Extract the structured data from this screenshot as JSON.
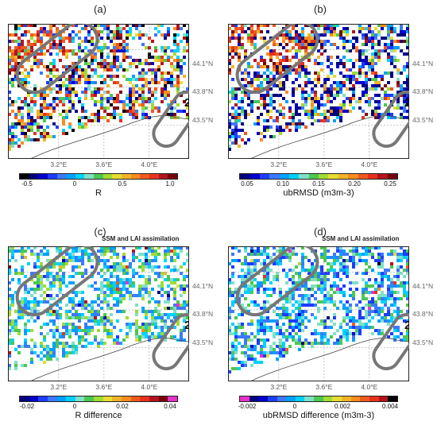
{
  "panels": [
    {
      "label": "(a)",
      "subtitle": "",
      "cbar_label": "R",
      "ticks": [
        "-0.5",
        "0",
        "0.5",
        "1.0"
      ],
      "lats": [
        "44.1°N",
        "43.8°N",
        "43.5°N"
      ],
      "lons": [
        "3.2°E",
        "3.6°E",
        "4.0°E"
      ],
      "regions": [
        "1",
        "2"
      ],
      "palette": [
        "#000000",
        "#000080",
        "#0000cd",
        "#1e3cff",
        "#3c78ff",
        "#00a0ff",
        "#00d2ff",
        "#7fe0c8",
        "#4bc850",
        "#a0dc32",
        "#e6dc32",
        "#f0b428",
        "#fa8c1e",
        "#f05a1e",
        "#e6321e",
        "#b4141e",
        "#78000a"
      ]
    },
    {
      "label": "(b)",
      "subtitle": "",
      "cbar_label": "ubRMSD (m3m-3)",
      "ticks": [
        "0.05",
        "0.10",
        "0.15",
        "0.20",
        "0.25"
      ],
      "lats": [
        "44.1°N",
        "43.8°N",
        "43.5°N"
      ],
      "lons": [
        "3.2°E",
        "3.6°E",
        "4.0°E"
      ],
      "regions": [
        "1",
        "2"
      ],
      "palette": [
        "#000080",
        "#0000cd",
        "#1e3cff",
        "#3c78ff",
        "#00a0ff",
        "#00d2ff",
        "#7fe0c8",
        "#4bc850",
        "#a0dc32",
        "#e6dc32",
        "#f0b428",
        "#fa8c1e",
        "#f05a1e",
        "#e6321e",
        "#b4141e",
        "#78000a"
      ]
    },
    {
      "label": "(c)",
      "subtitle": "SSM and LAI assimilation",
      "cbar_label": "R difference",
      "ticks": [
        "-0.02",
        "0",
        "0.02",
        "0.04"
      ],
      "lats": [
        "44.1°N",
        "43.8°N",
        "43.5°N"
      ],
      "lons": [
        "3.2°E",
        "3.6°E",
        "4.0°E"
      ],
      "regions": [
        "1",
        "2"
      ],
      "palette": [
        "#000080",
        "#0000cd",
        "#1e3cff",
        "#3c78ff",
        "#00a0ff",
        "#00d2ff",
        "#7fe0c8",
        "#4bc850",
        "#a0dc32",
        "#e6dc32",
        "#f0b428",
        "#fa8c1e",
        "#f05a1e",
        "#e6321e",
        "#b4141e",
        "#78000a",
        "#e632c8"
      ]
    },
    {
      "label": "(d)",
      "subtitle": "SSM and LAI assimilation",
      "cbar_label": "ubRMSD difference (m3m-3)",
      "ticks": [
        "-0.002",
        "0",
        "0.002",
        "0.004"
      ],
      "lats": [
        "44.1°N",
        "43.8°N",
        "43.5°N"
      ],
      "lons": [
        "3.2°E",
        "3.6°E",
        "4.0°E"
      ],
      "regions": [
        "1",
        "2"
      ],
      "palette": [
        "#e632c8",
        "#000080",
        "#0000cd",
        "#1e3cff",
        "#3c78ff",
        "#00a0ff",
        "#00d2ff",
        "#7fe0c8",
        "#4bc850",
        "#a0dc32",
        "#e6dc32",
        "#f0b428",
        "#fa8c1e",
        "#f05a1e",
        "#e6321e",
        "#b4141e",
        "#000000"
      ]
    }
  ]
}
